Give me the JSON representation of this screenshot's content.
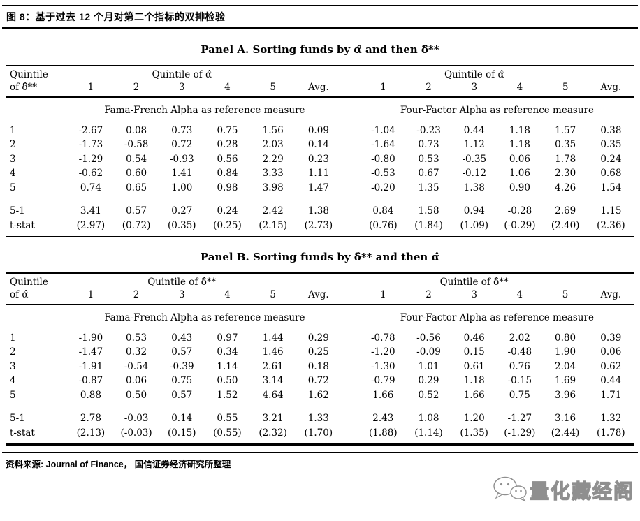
{
  "figure": {
    "title": "图 8：基于过去 12 个月对第二个指标的双排检验"
  },
  "panels": [
    {
      "title": "Panel A. Sorting funds by α̂ and then δ̂**",
      "row_label_line1": "Quintile",
      "row_label_line2": "of δ̂**",
      "col_group_label": "Quintile of α̂",
      "col_headers": [
        "1",
        "2",
        "3",
        "4",
        "5",
        "Avg."
      ],
      "left_subheader": "Fama-French Alpha as reference measure",
      "right_subheader": "Four-Factor Alpha as reference measure",
      "rows": [
        {
          "label": "1",
          "left": [
            "-2.67",
            "0.08",
            "0.73",
            "0.75",
            "1.56",
            "0.09"
          ],
          "right": [
            "-1.04",
            "-0.23",
            "0.44",
            "1.18",
            "1.57",
            "0.38"
          ]
        },
        {
          "label": "2",
          "left": [
            "-1.73",
            "-0.58",
            "0.72",
            "0.28",
            "2.03",
            "0.14"
          ],
          "right": [
            "-1.64",
            "0.73",
            "1.12",
            "1.18",
            "0.35",
            "0.35"
          ]
        },
        {
          "label": "3",
          "left": [
            "-1.29",
            "0.54",
            "-0.93",
            "0.56",
            "2.29",
            "0.23"
          ],
          "right": [
            "-0.80",
            "0.53",
            "-0.35",
            "0.06",
            "1.78",
            "0.24"
          ]
        },
        {
          "label": "4",
          "left": [
            "-0.62",
            "0.60",
            "1.41",
            "0.84",
            "3.33",
            "1.11"
          ],
          "right": [
            "-0.53",
            "0.67",
            "-0.12",
            "1.06",
            "2.30",
            "0.68"
          ]
        },
        {
          "label": "5",
          "left": [
            "0.74",
            "0.65",
            "1.00",
            "0.98",
            "3.98",
            "1.47"
          ],
          "right": [
            "-0.20",
            "1.35",
            "1.38",
            "0.90",
            "4.26",
            "1.54"
          ]
        }
      ],
      "summary_rows": [
        {
          "label": "5-1",
          "left": [
            "3.41",
            "0.57",
            "0.27",
            "0.24",
            "2.42",
            "1.38"
          ],
          "right": [
            "0.84",
            "1.58",
            "0.94",
            "-0.28",
            "2.69",
            "1.15"
          ]
        },
        {
          "label": "t-stat",
          "left": [
            "(2.97)",
            "(0.72)",
            "(0.35)",
            "(0.25)",
            "(2.15)",
            "(2.73)"
          ],
          "right": [
            "(0.76)",
            "(1.84)",
            "(1.09)",
            "(-0.29)",
            "(2.40)",
            "(2.36)"
          ]
        }
      ]
    },
    {
      "title": "Panel B. Sorting funds by δ̂** and then α̂",
      "row_label_line1": "Quintile",
      "row_label_line2": "of α̂",
      "col_group_label": "Quintile of δ̂**",
      "col_headers": [
        "1",
        "2",
        "3",
        "4",
        "5",
        "Avg."
      ],
      "left_subheader": "Fama-French Alpha as reference measure",
      "right_subheader": "Four-Factor Alpha as reference measure",
      "rows": [
        {
          "label": "1",
          "left": [
            "-1.90",
            "0.53",
            "0.43",
            "0.97",
            "1.44",
            "0.29"
          ],
          "right": [
            "-0.78",
            "-0.56",
            "0.46",
            "2.02",
            "0.80",
            "0.39"
          ]
        },
        {
          "label": "2",
          "left": [
            "-1.47",
            "0.32",
            "0.57",
            "0.34",
            "1.46",
            "0.25"
          ],
          "right": [
            "-1.20",
            "-0.09",
            "0.15",
            "-0.48",
            "1.90",
            "0.06"
          ]
        },
        {
          "label": "3",
          "left": [
            "-1.91",
            "-0.54",
            "-0.39",
            "1.14",
            "2.61",
            "0.18"
          ],
          "right": [
            "-1.30",
            "1.01",
            "0.61",
            "0.76",
            "2.04",
            "0.62"
          ]
        },
        {
          "label": "4",
          "left": [
            "-0.87",
            "0.06",
            "0.75",
            "0.50",
            "3.14",
            "0.72"
          ],
          "right": [
            "-0.79",
            "0.29",
            "1.18",
            "-0.15",
            "1.69",
            "0.44"
          ]
        },
        {
          "label": "5",
          "left": [
            "0.88",
            "0.50",
            "0.57",
            "1.52",
            "4.64",
            "1.62"
          ],
          "right": [
            "1.66",
            "0.52",
            "1.66",
            "0.75",
            "3.96",
            "1.71"
          ]
        }
      ],
      "summary_rows": [
        {
          "label": "5-1",
          "left": [
            "2.78",
            "-0.03",
            "0.14",
            "0.55",
            "3.21",
            "1.33"
          ],
          "right": [
            "2.43",
            "1.08",
            "1.20",
            "-1.27",
            "3.16",
            "1.32"
          ]
        },
        {
          "label": "t-stat",
          "left": [
            "(2.13)",
            "(-0.03)",
            "(0.15)",
            "(0.55)",
            "(2.32)",
            "(1.70)"
          ],
          "right": [
            "(1.88)",
            "(1.14)",
            "(1.35)",
            "(-1.29)",
            "(2.44)",
            "(1.78)"
          ]
        }
      ]
    }
  ],
  "footer": {
    "source": "资料来源: Journal of Finance，  国信证券经济研究所整理"
  },
  "watermark": {
    "text": "量化藏经阁"
  }
}
